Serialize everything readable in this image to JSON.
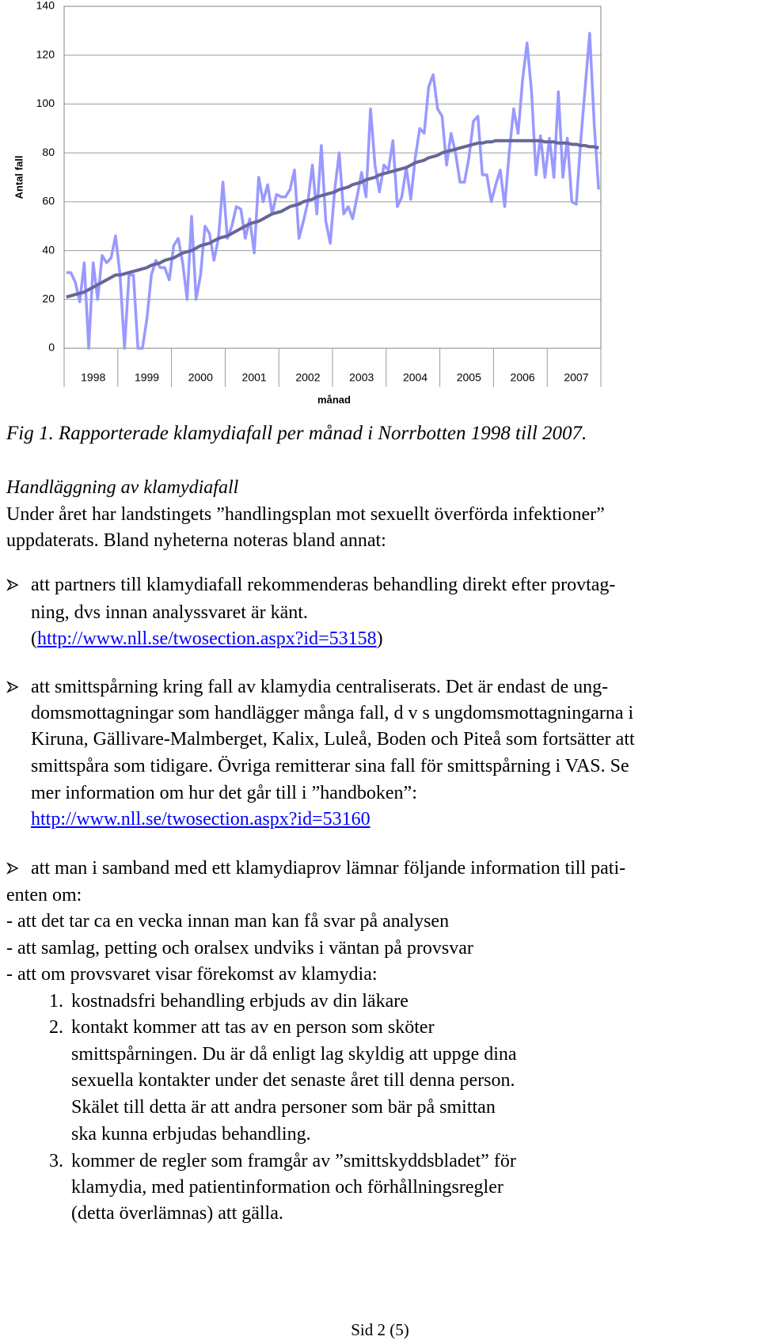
{
  "chart_data": {
    "type": "line",
    "y_label": "Antal fall",
    "x_label": "månad",
    "categories": [
      null,
      null,
      null,
      null,
      null,
      null,
      "1998",
      null,
      null,
      null,
      null,
      null,
      null,
      null,
      null,
      null,
      null,
      null,
      "1999",
      null,
      null,
      null,
      null,
      null,
      null,
      null,
      null,
      null,
      null,
      null,
      "2000",
      null,
      null,
      null,
      null,
      null,
      null,
      null,
      null,
      null,
      null,
      null,
      "2001",
      null,
      null,
      null,
      null,
      null,
      null,
      null,
      null,
      null,
      null,
      null,
      "2002",
      null,
      null,
      null,
      null,
      null,
      null,
      null,
      null,
      null,
      null,
      null,
      "2003",
      null,
      null,
      null,
      null,
      null,
      null,
      null,
      null,
      null,
      null,
      null,
      "2004",
      null,
      null,
      null,
      null,
      null,
      null,
      null,
      null,
      null,
      null,
      null,
      "2005",
      null,
      null,
      null,
      null,
      null,
      null,
      null,
      null,
      null,
      null,
      null,
      "2006",
      null,
      null,
      null,
      null,
      null,
      null,
      null,
      null,
      null,
      null,
      null,
      "2007",
      null,
      null,
      null,
      null,
      null
    ],
    "series": [
      {
        "color": "#9999ff",
        "values": [
          31,
          31,
          27,
          19,
          35,
          0,
          35,
          20,
          38,
          35,
          37,
          46,
          30,
          0,
          30,
          30,
          0,
          0,
          12,
          30,
          36,
          33,
          33,
          28,
          42,
          45,
          35,
          20,
          54,
          20,
          30,
          50,
          47,
          36,
          45,
          68,
          45,
          50,
          58,
          57,
          45,
          53,
          39,
          70,
          60,
          67,
          55,
          63,
          62,
          62,
          65,
          73,
          45,
          52,
          60,
          75,
          55,
          83,
          52,
          43,
          65,
          80,
          55,
          58,
          53,
          62,
          72,
          62,
          98,
          75,
          64,
          75,
          73,
          85,
          58,
          62,
          74,
          61,
          78,
          90,
          88,
          107,
          112,
          98,
          95,
          75,
          88,
          80,
          68,
          68,
          78,
          93,
          95,
          71,
          71,
          60,
          67,
          73,
          58,
          80,
          98,
          88,
          110,
          125,
          105,
          71,
          87,
          70,
          86,
          70,
          105,
          70,
          86,
          60,
          59,
          85,
          107,
          129,
          92,
          65
        ]
      },
      {
        "color": "#666699",
        "values": [
          21,
          21.5,
          22,
          22.5,
          23,
          24,
          25,
          26,
          27,
          28,
          29,
          30,
          30,
          30.5,
          31,
          31.5,
          32,
          32.5,
          33,
          34,
          34.5,
          35,
          36,
          36.5,
          37,
          38,
          39,
          39.5,
          40,
          41,
          42,
          42.5,
          43,
          44,
          45,
          45.5,
          46,
          47,
          48,
          49,
          50,
          51,
          51.5,
          52,
          53,
          54,
          55,
          55.5,
          56,
          57,
          58,
          58.5,
          59,
          60,
          60.5,
          61,
          62,
          62.5,
          63,
          63.5,
          64,
          65,
          65.5,
          66,
          67,
          67.5,
          68,
          69,
          69.5,
          70,
          71,
          71.5,
          72,
          72.5,
          73,
          73.5,
          74,
          75,
          76,
          76.5,
          77,
          78,
          78.5,
          79,
          80,
          80.5,
          81,
          81.5,
          82,
          82.5,
          83,
          83.5,
          84,
          84,
          84.5,
          84.5,
          85,
          85,
          85,
          85,
          85,
          85,
          85,
          85,
          85,
          85,
          85,
          84.5,
          84.5,
          84.5,
          84,
          84,
          84,
          83.5,
          83.5,
          83,
          83,
          82.5,
          82.5,
          82
        ]
      }
    ],
    "ylim": [
      0,
      140
    ],
    "yticks": [
      0,
      20,
      40,
      60,
      80,
      100,
      120,
      140
    ],
    "grid": true
  },
  "caption": "Fig 1.  Rapporterade klamydiafall per månad i Norrbotten 1998 till 2007.",
  "section": {
    "heading": "Handläggning av klamydiafall",
    "lines": [
      "Under året har landstingets ”handlingsplan mot sexuellt överförda infektioner”",
      "uppdaterats. Bland nyheterna noteras bland annat:"
    ]
  },
  "bullets": [
    {
      "lines": [
        "att partners till klamydiafall rekommenderas behandling direkt efter provtag-",
        "ning, dvs innan analyssvaret är känt."
      ],
      "link_prefix": "(",
      "link": "http://www.nll.se/twosection.aspx?id=53158",
      "link_suffix": ")"
    },
    {
      "lines": [
        "att smittspårning kring fall av klamydia centraliserats. Det är endast de ung-",
        "domsmottagningar som handlägger många fall, d v s ungdomsmottagningarna i",
        "Kiruna, Gällivare-Malmberget, Kalix, Luleå, Boden och Piteå som fortsätter att",
        "smittspåra som tidigare. Övriga remitterar sina fall för smittspårning i VAS. Se",
        "mer information om hur det går till i ”handboken”:"
      ],
      "link": "http://www.nll.se/twosection.aspx?id=53160"
    },
    {
      "lines": [
        "att man i samband med ett klamydiaprov lämnar följande information till pati-",
        "enten om:"
      ],
      "dash_items": [
        "- att det tar ca en vecka innan man kan få svar på analysen",
        "- att samlag, petting och oralsex undviks i väntan på provsvar",
        "- att om provsvaret visar förekomst av klamydia:"
      ],
      "numbered": [
        {
          "number": "1.",
          "lines": [
            "kostnadsfri behandling erbjuds av din läkare"
          ]
        },
        {
          "number": "2.",
          "lines": [
            "kontakt kommer att tas av en person som sköter",
            "smittspårningen. Du är då enligt lag skyldig att uppge dina",
            "sexuella kontakter under det senaste året till denna person.",
            "Skälet till detta är att andra personer som bär på smittan",
            "ska kunna erbjudas behandling."
          ]
        },
        {
          "number": "3.",
          "lines": [
            "kommer de regler som framgår av ”smittskyddsbladet” för",
            "klamydia, med patientinformation och förhållningsregler",
            "(detta överlämnas) att gälla."
          ]
        }
      ]
    }
  ],
  "footer": "Sid 2 (5)"
}
